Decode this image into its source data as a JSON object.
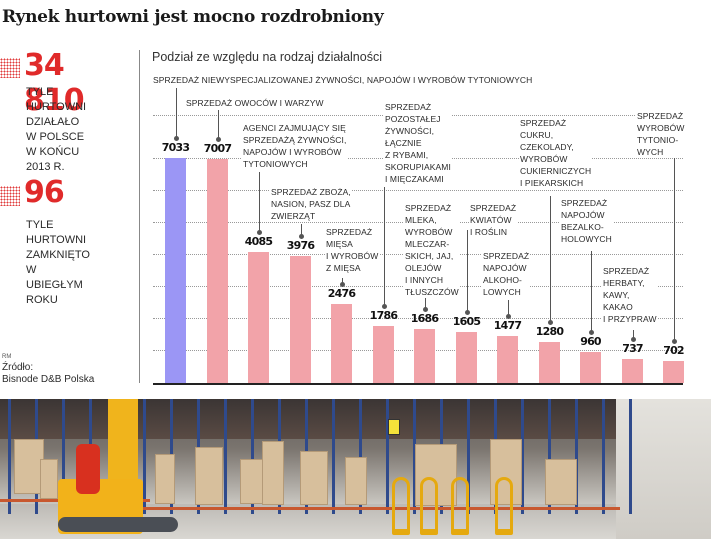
{
  "header": {
    "title": "Rynek hurtowni jest mocno rozdrobniony"
  },
  "stats": [
    {
      "value": "34 810",
      "description": "TYLE HURTOWNI\nDZIAŁAŁO\nW POLSCE\nW KOŃCU 2013 R."
    },
    {
      "value": "96",
      "description": "TYLE\nHURTOWNI\nZAMKNIĘTO\nW UBIEGŁYM\nROKU"
    }
  ],
  "credit": "RM",
  "source": {
    "label": "Źródło:",
    "name": "Bisnode D&B Polska"
  },
  "colors": {
    "accent_red": "#e02a2a",
    "highlight_bar": "#9b96f5",
    "bar": "#f2a3a9"
  },
  "chart_data": {
    "type": "bar",
    "title": "Rynek hurtowni jest mocno rozdrobniony",
    "subtitle": "Podział ze względu na rodzaj działalności",
    "xlabel": "",
    "ylabel": "",
    "ylim": [
      0,
      8000
    ],
    "grid": true,
    "legend": null,
    "categories": [
      "SPRZEDAŻ NIEWYSPECJALIZOWANEJ ŻYWNOŚCI, NAPOJÓW I WYROBÓW TYTONIOWYCH",
      "SPRZEDAŻ OWOCÓW I WARZYW",
      "AGENCI ZAJMUJĄCY SIĘ SPRZEDAŻĄ ŻYWNOŚCI, NAPOJÓW I WYROBÓW TYTONIOWYCH",
      "SPRZEDAŻ ZBOŻA, NASION, PASZ DLA ZWIERZĄT",
      "SPRZEDAŻ MIĘSA I WYROBÓW Z MIĘSA",
      "SPRZEDAŻ POZOSTAŁEJ ŻYWNOŚCI, ŁĄCZNIE Z RYBAMI, SKORUPIAKAMI I MIĘCZAKAMI",
      "SPRZEDAŻ MLEKA, WYROBÓW MLECZARSKICH, JAJ, OLEJÓW I INNYCH TŁUSZCZÓW",
      "SPRZEDAŻ KWIATÓW I ROŚLIN",
      "SPRZEDAŻ NAPOJÓW ALKOHOLOWYCH",
      "SPRZEDAŻ CUKRU, CZEKOLADY, WYROBÓW CUKIERNICZYCH I PIEKARSKICH",
      "SPRZEDAŻ NAPOJÓW BEZALKOHOLOWYCH",
      "SPRZEDAŻ HERBATY, KAWY, KAKAO I PRZYPRAW",
      "SPRZEDAŻ WYROBÓW TYTONIOWYCH"
    ],
    "labels_display": [
      "SPRZEDAŻ NIEWYSPECJALIZOWANEJ ŻYWNOŚCI, NAPOJÓW I WYROBÓW TYTONIOWYCH",
      "SPRZEDAŻ OWOCÓW I WARZYW",
      "AGENCI ZAJMUJĄCY SIĘ\nSPRZEDAŻĄ ŻYWNOŚCI,\nNAPOJÓW I WYROBÓW\nTYTONIOWYCH",
      "SPRZEDAŻ ZBOŻA,\nNASION, PASZ DLA\nZWIERZĄT",
      "SPRZEDAŻ\nMIĘSA\nI WYROBÓW\nZ MIĘSA",
      "SPRZEDAŻ\nPOZOSTAŁEJ\nŻYWNOŚCI,\nŁĄCZNIE\nZ RYBAMI,\nSKORUPIAKAMI\nI MIĘCZAKAMI",
      "SPRZEDAŻ\nMLEKA,\nWYROBÓW\nMLECZAR-\nSKICH, JAJ,\nOLEJÓW\nI INNYCH\nTŁUSZCZÓW",
      "SPRZEDAŻ\nKWIATÓW\nI ROŚLIN",
      "SPRZEDAŻ\nNAPOJÓW\nALKOHO-\nLOWYCH",
      "SPRZEDAŻ\nCUKRU,\nCZEKOLADY,\nWYROBÓW\nCUKIERNICZYCH\nI PIEKARSKICH",
      "SPRZEDAŻ\nNAPOJÓW\nBEZALKO-\nHOLOWYCH",
      "SPRZEDAŻ\nHERBATY,\nKAWY,\nKAKAO\nI PRZYPRAW",
      "SPRZEDAŻ\nWYROBÓW\nTYTONIO-\nWYCH"
    ],
    "values": [
      7033,
      7007,
      4085,
      3976,
      2476,
      1786,
      1686,
      1605,
      1477,
      1280,
      960,
      737,
      702
    ],
    "value_labels": [
      "7033",
      "7007",
      "4085",
      "3976",
      "2476",
      "1786",
      "1686",
      "1605",
      "1477",
      "1280",
      "960",
      "737",
      "702"
    ],
    "highlighted_index": 0
  },
  "photo": {
    "description": "warehouse with forklift and pallet racks"
  }
}
